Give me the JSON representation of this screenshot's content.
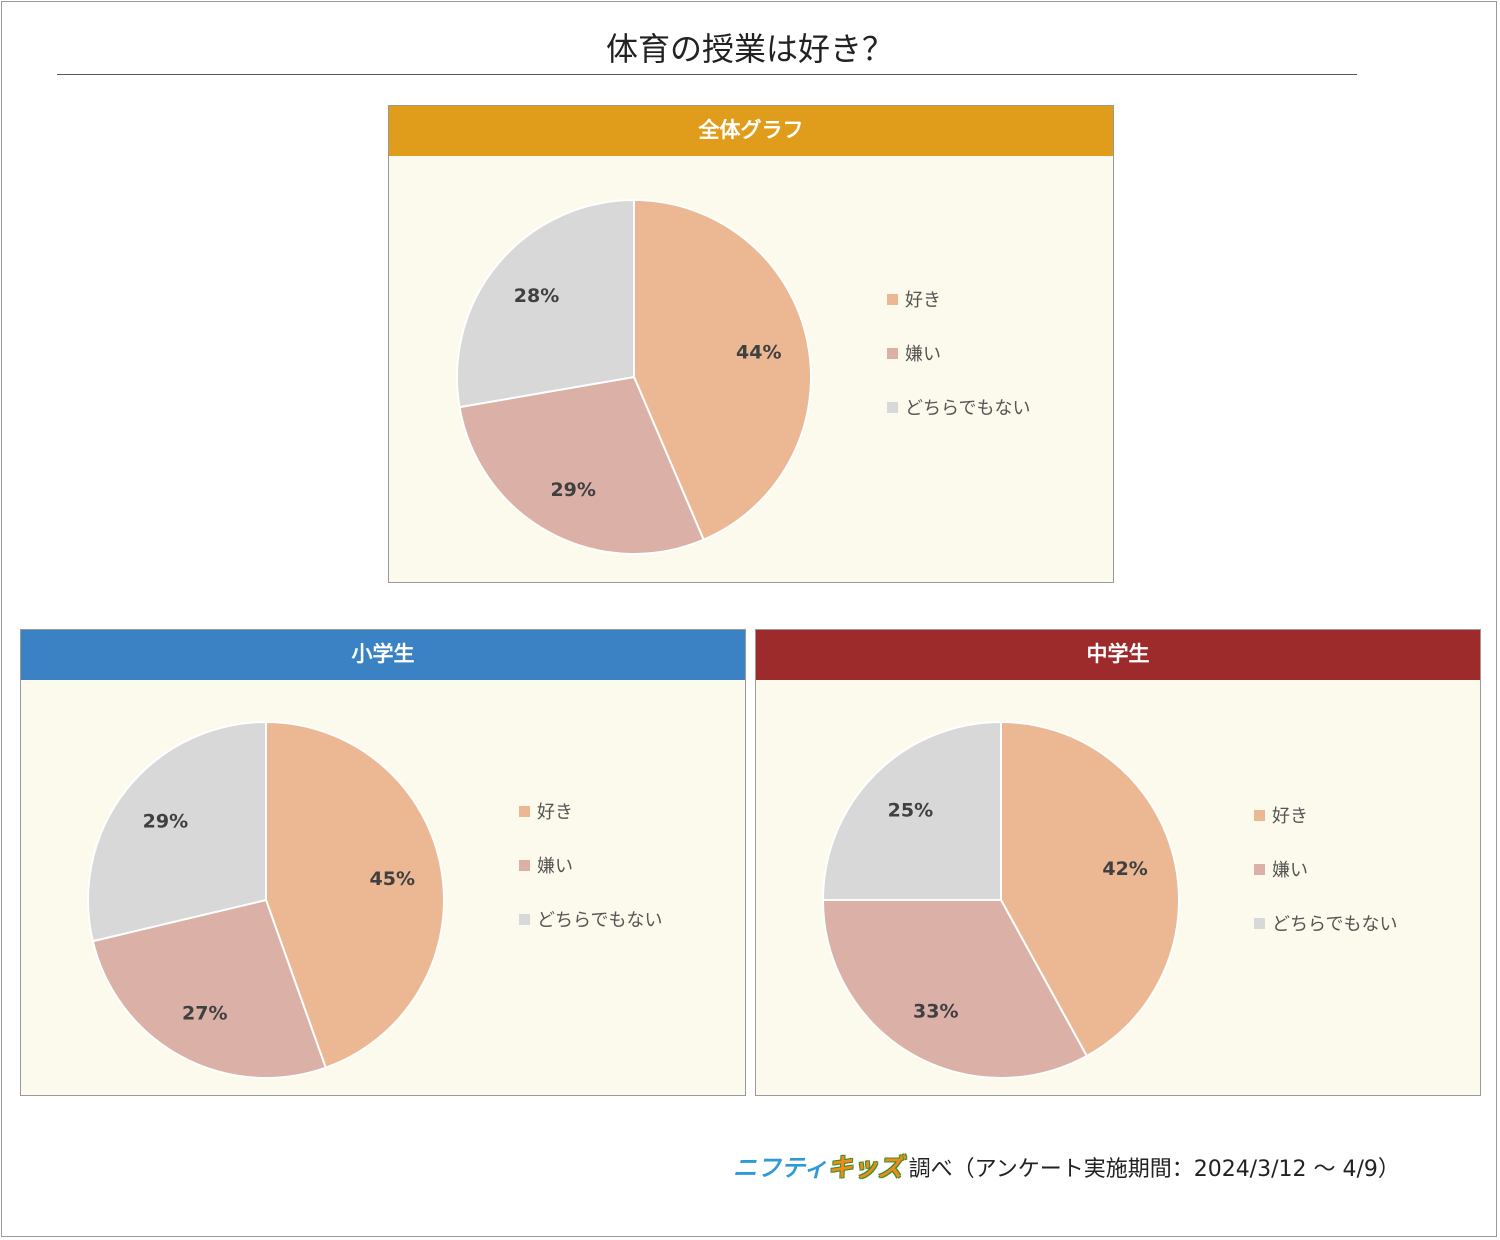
{
  "title": "体育の授業は好き？",
  "colors": {
    "like": "#ecb894",
    "dislike": "#dbb0a6",
    "neither": "#d8d8d8",
    "panel_bg": "#fcfaec",
    "header_overall": "#e09c1b",
    "header_elementary": "#3a82c4",
    "header_junior": "#9e2b2b"
  },
  "legend_labels": [
    "好き",
    "嫌い",
    "どちらでもない"
  ],
  "chart_data": [
    {
      "type": "pie",
      "title": "全体グラフ",
      "header_color": "#e09c1b",
      "slices": [
        {
          "label": "好き",
          "value": 44,
          "display": "44%",
          "color": "#ecb894"
        },
        {
          "label": "嫌い",
          "value": 29,
          "display": "29%",
          "color": "#dbb0a6"
        },
        {
          "label": "どちらでもない",
          "value": 28,
          "display": "28%",
          "color": "#d8d8d8"
        }
      ],
      "legend_position": "right"
    },
    {
      "type": "pie",
      "title": "小学生",
      "header_color": "#3a82c4",
      "slices": [
        {
          "label": "好き",
          "value": 45,
          "display": "45%",
          "color": "#ecb894"
        },
        {
          "label": "嫌い",
          "value": 27,
          "display": "27%",
          "color": "#dbb0a6"
        },
        {
          "label": "どちらでもない",
          "value": 29,
          "display": "29%",
          "color": "#d8d8d8"
        }
      ],
      "legend_position": "right"
    },
    {
      "type": "pie",
      "title": "中学生",
      "header_color": "#9e2b2b",
      "slices": [
        {
          "label": "好き",
          "value": 42,
          "display": "42%",
          "color": "#ecb894"
        },
        {
          "label": "嫌い",
          "value": 33,
          "display": "33%",
          "color": "#dbb0a6"
        },
        {
          "label": "どちらでもない",
          "value": 25,
          "display": "25%",
          "color": "#d8d8d8"
        }
      ],
      "legend_position": "right"
    }
  ],
  "footer": {
    "logo_part1": "ニフティ",
    "logo_part2": "キッズ",
    "note": "調べ（アンケート実施期間：2024/3/12 ～ 4/9）"
  }
}
